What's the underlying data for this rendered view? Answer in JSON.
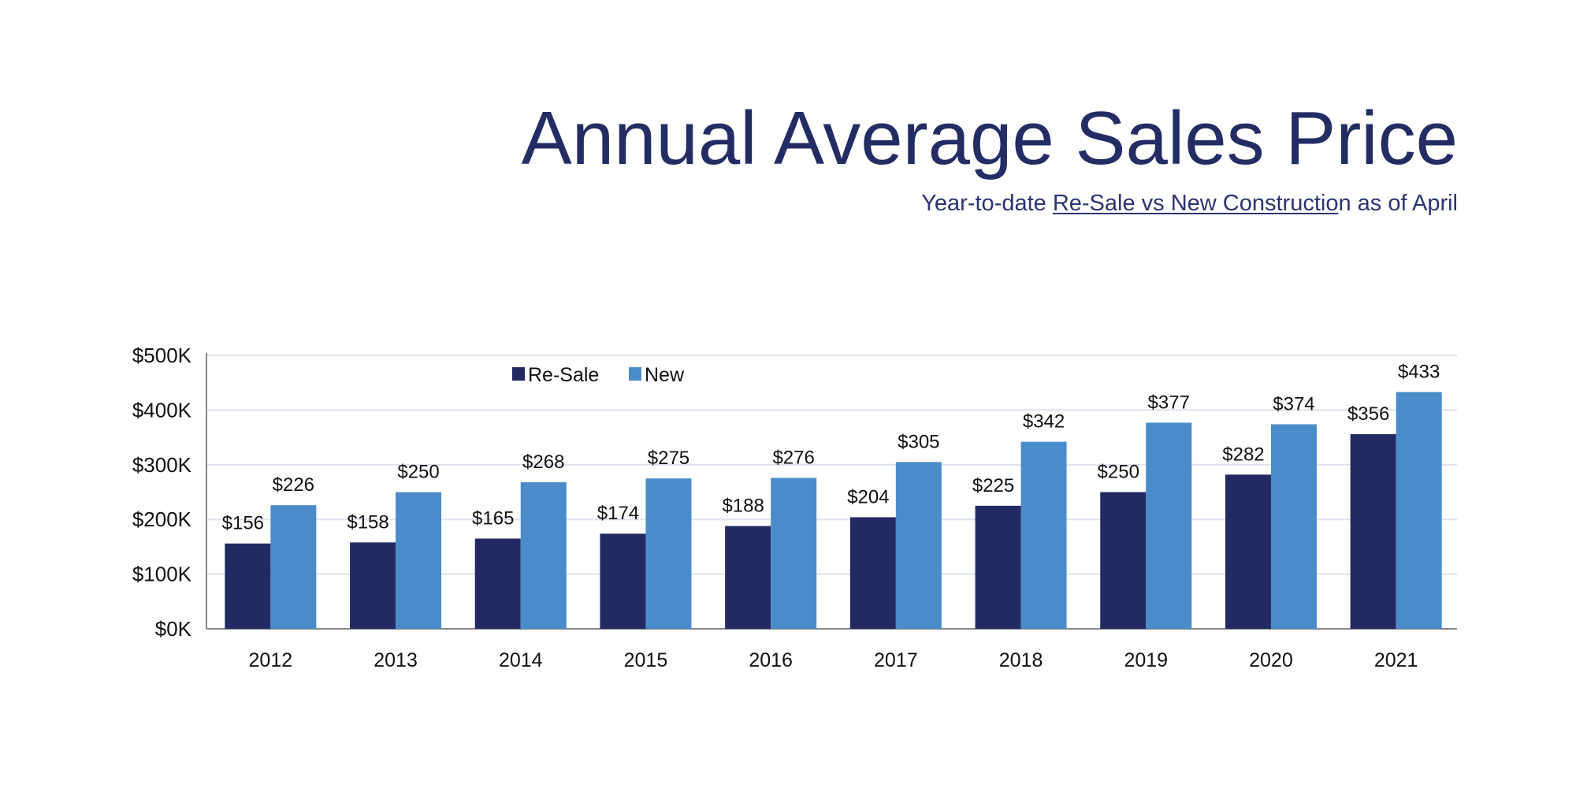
{
  "chart_data": {
    "type": "bar",
    "title": "Annual Average Sales Price",
    "subtitle": {
      "before": "Year-to-date ",
      "underlined": "Re-Sale vs New Constructio",
      "after": "n as of April"
    },
    "xlabel": "",
    "ylabel": "",
    "categories": [
      "2012",
      "2013",
      "2014",
      "2015",
      "2016",
      "2017",
      "2018",
      "2019",
      "2020",
      "2021"
    ],
    "series": [
      {
        "name": "Re-Sale",
        "color": "#232a63",
        "values": [
          156,
          158,
          165,
          174,
          188,
          204,
          225,
          250,
          282,
          356
        ],
        "labels": [
          "$156",
          "$158",
          "$165",
          "$174",
          "$188",
          "$204",
          "$225",
          "$250",
          "$282",
          "$356"
        ]
      },
      {
        "name": "New",
        "color": "#4a8cc9",
        "values": [
          226,
          250,
          268,
          275,
          276,
          305,
          342,
          377,
          374,
          433
        ],
        "labels": [
          "$226",
          "$250",
          "$268",
          "$275",
          "$276",
          "$305",
          "$342",
          "$377",
          "$374",
          "$433"
        ]
      }
    ],
    "units": "thousands of dollars",
    "ylim": [
      0,
      500
    ],
    "yticks": [
      0,
      100,
      200,
      300,
      400,
      500
    ],
    "ytick_labels": [
      "$0K",
      "$100K",
      "$200K",
      "$300K",
      "$400K",
      "$500K"
    ],
    "grid": true,
    "legend": "top-left"
  }
}
